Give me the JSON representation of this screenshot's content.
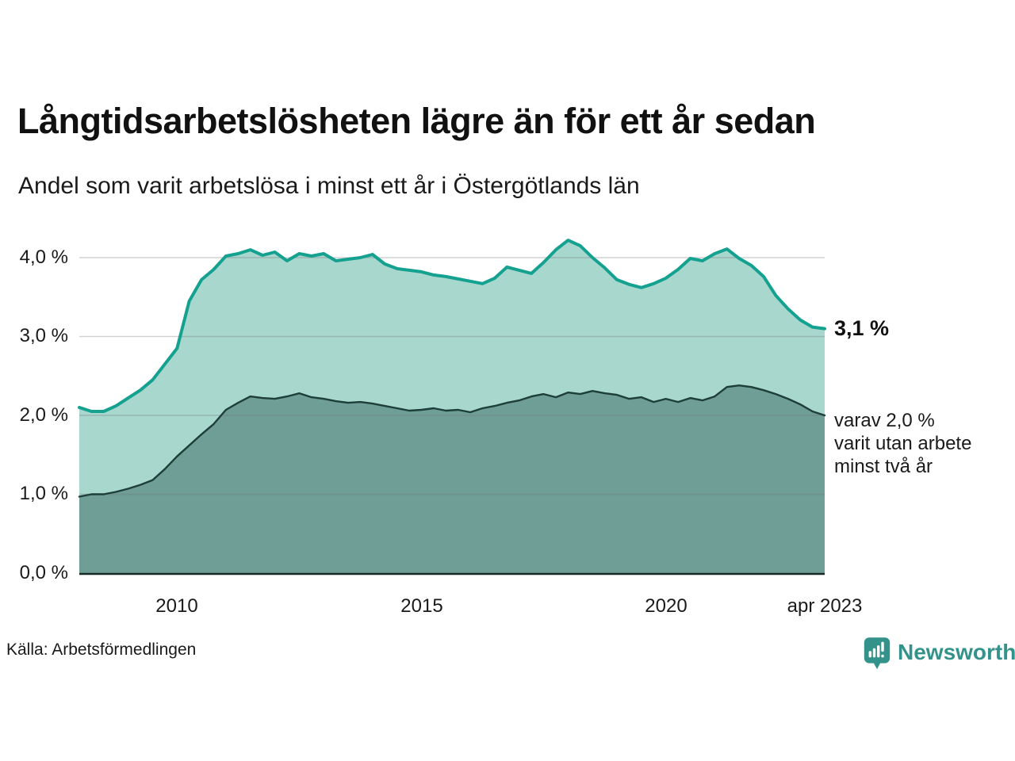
{
  "header": {
    "title": "Långtidsarbetslösheten lägre än för ett år sedan",
    "subtitle": "Andel som varit arbetslösa i minst ett år i Östergötlands län"
  },
  "chart_data": {
    "type": "area",
    "title": "Långtidsarbetslösheten lägre än för ett år sedan",
    "xlabel": "",
    "ylabel": "",
    "grid": "horizontal",
    "legend_position": "none",
    "xlim": [
      2008,
      2023.25
    ],
    "ylim": [
      0,
      4.4
    ],
    "y_ticks": [
      0,
      1,
      2,
      3,
      4
    ],
    "y_tick_labels": [
      "0,0 %",
      "1,0 %",
      "2,0 %",
      "3,0 %",
      "4,0 %"
    ],
    "x_tick_labels": [
      "2010",
      "2015",
      "2020",
      "apr 2023"
    ],
    "x_tick_positions": [
      2010,
      2015,
      2020,
      2023.25
    ],
    "x": [
      2008.0,
      2008.25,
      2008.5,
      2008.75,
      2009.0,
      2009.25,
      2009.5,
      2009.75,
      2010.0,
      2010.25,
      2010.5,
      2010.75,
      2011.0,
      2011.25,
      2011.5,
      2011.75,
      2012.0,
      2012.25,
      2012.5,
      2012.75,
      2013.0,
      2013.25,
      2013.5,
      2013.75,
      2014.0,
      2014.25,
      2014.5,
      2014.75,
      2015.0,
      2015.25,
      2015.5,
      2015.75,
      2016.0,
      2016.25,
      2016.5,
      2016.75,
      2017.0,
      2017.25,
      2017.5,
      2017.75,
      2018.0,
      2018.25,
      2018.5,
      2018.75,
      2019.0,
      2019.25,
      2019.5,
      2019.75,
      2020.0,
      2020.25,
      2020.5,
      2020.75,
      2021.0,
      2021.25,
      2021.5,
      2021.75,
      2022.0,
      2022.25,
      2022.5,
      2022.75,
      2023.0,
      2023.25
    ],
    "series": [
      {
        "name": "Andel som varit arbetslösa i minst ett år",
        "color": "#14a190",
        "fill": "#a8d7ce",
        "values": [
          2.1,
          2.05,
          2.05,
          2.12,
          2.22,
          2.32,
          2.45,
          2.65,
          2.85,
          3.45,
          3.72,
          3.85,
          4.02,
          4.05,
          4.1,
          4.03,
          4.07,
          3.96,
          4.05,
          4.02,
          4.05,
          3.96,
          3.98,
          4.0,
          4.04,
          3.92,
          3.86,
          3.84,
          3.82,
          3.78,
          3.76,
          3.73,
          3.7,
          3.67,
          3.74,
          3.88,
          3.84,
          3.8,
          3.94,
          4.1,
          4.22,
          4.15,
          4.0,
          3.87,
          3.72,
          3.66,
          3.62,
          3.67,
          3.74,
          3.85,
          3.99,
          3.96,
          4.05,
          4.11,
          3.99,
          3.9,
          3.76,
          3.52,
          3.35,
          3.21,
          3.12,
          3.1
        ]
      },
      {
        "name": "varav utan arbete minst två år",
        "color": "#1e3e38",
        "fill": "#6f9e97",
        "values": [
          0.97,
          1.0,
          1.0,
          1.03,
          1.07,
          1.12,
          1.18,
          1.32,
          1.48,
          1.62,
          1.76,
          1.89,
          2.07,
          2.16,
          2.24,
          2.22,
          2.21,
          2.24,
          2.28,
          2.23,
          2.21,
          2.18,
          2.16,
          2.17,
          2.15,
          2.12,
          2.09,
          2.06,
          2.07,
          2.09,
          2.06,
          2.07,
          2.04,
          2.09,
          2.12,
          2.16,
          2.19,
          2.24,
          2.27,
          2.23,
          2.29,
          2.27,
          2.31,
          2.28,
          2.26,
          2.21,
          2.23,
          2.17,
          2.21,
          2.17,
          2.22,
          2.19,
          2.24,
          2.36,
          2.38,
          2.36,
          2.32,
          2.27,
          2.21,
          2.14,
          2.05,
          2.0
        ]
      }
    ],
    "annotations": {
      "latest_total": "3,1 %",
      "latest_two_years": [
        "varav 2,0 %",
        "varit utan arbete",
        "minst två år"
      ]
    }
  },
  "footer": {
    "source": "Källa: Arbetsförmedlingen",
    "brand": "Newsworthy"
  },
  "colors": {
    "brand": "#33938a",
    "gridline": "rgba(115,115,115,0.32)",
    "axis": "#1c2a27",
    "series_total_line": "#14a190",
    "series_total_fill": "#a8d7ce",
    "series_two_years_line": "#1e3e38",
    "series_two_years_fill": "#6f9e97"
  }
}
